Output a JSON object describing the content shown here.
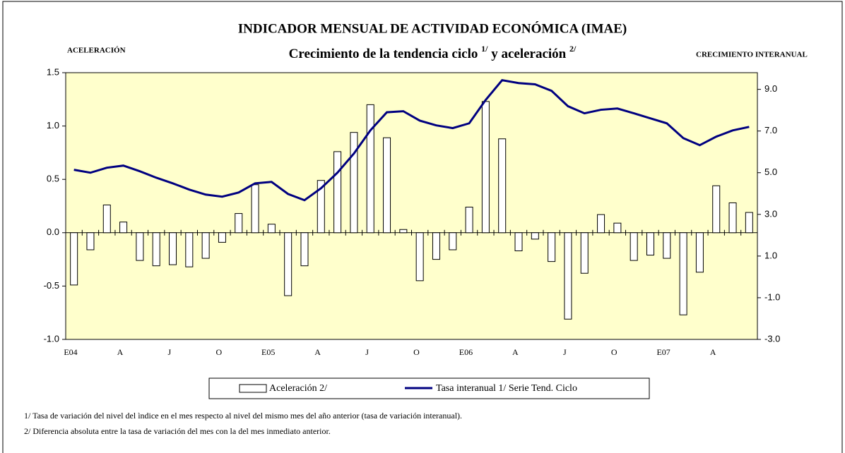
{
  "chart_data": {
    "type": "bar_line",
    "title": "INDICADOR MENSUAL DE ACTIVIDAD ECONÓMICA (IMAE)",
    "subtitle_parts": [
      "Crecimiento de la tendencia ciclo ",
      "1/",
      " y aceleración ",
      "2/"
    ],
    "y_label": "ACELERACIÓN",
    "y2_label": "CRECIMIENTO INTERANUAL",
    "categories": [
      "E04",
      null,
      null,
      "A",
      null,
      null,
      "J",
      null,
      null,
      "O",
      null,
      null,
      "E05",
      null,
      null,
      "A",
      null,
      null,
      "J",
      null,
      null,
      "O",
      null,
      null,
      "E06",
      null,
      null,
      "A",
      null,
      null,
      "J",
      null,
      null,
      "O",
      null,
      null,
      "E07",
      null,
      null,
      "A",
      null,
      null
    ],
    "series": [
      {
        "name": "Aceleración 2/",
        "type": "bar",
        "color": "#ffffff",
        "axis": "y",
        "values": [
          -0.49,
          -0.16,
          0.26,
          0.1,
          -0.26,
          -0.31,
          -0.3,
          -0.32,
          -0.24,
          -0.09,
          0.18,
          0.45,
          0.08,
          -0.59,
          -0.31,
          0.49,
          0.76,
          0.94,
          1.2,
          0.89,
          0.03,
          -0.45,
          -0.25,
          -0.16,
          0.24,
          1.23,
          0.88,
          -0.17,
          -0.06,
          -0.27,
          -0.81,
          -0.38,
          0.17,
          0.09,
          -0.26,
          -0.21,
          -0.24,
          -0.77,
          -0.37,
          0.44,
          0.28,
          0.19
        ]
      },
      {
        "name": "Tasa interanual 1/ Serie Tend. Ciclo",
        "type": "line",
        "color": "#000080",
        "axis": "y2",
        "values": [
          5.14,
          5.0,
          5.24,
          5.34,
          5.07,
          4.76,
          4.49,
          4.19,
          3.95,
          3.85,
          4.05,
          4.49,
          4.56,
          3.98,
          3.68,
          4.25,
          5.0,
          5.92,
          7.03,
          7.9,
          7.95,
          7.5,
          7.27,
          7.14,
          7.37,
          8.49,
          9.44,
          9.3,
          9.24,
          8.93,
          8.19,
          7.85,
          8.02,
          8.08,
          7.85,
          7.61,
          7.37,
          6.66,
          6.32,
          6.73,
          7.03,
          7.2
        ]
      }
    ],
    "ylim": [
      -1.0,
      1.5
    ],
    "yticks": [
      {
        "value": -1.0,
        "label": "-1.0"
      },
      -0.5,
      {
        "value": 0.0,
        "label": "0.0"
      },
      0.5,
      {
        "value": 1.0,
        "label": "1.0"
      },
      1.5
    ],
    "y2lim": [
      -3.0,
      9.8
    ],
    "y2ticks": [
      {
        "value": -3.0,
        "label": "-3.0"
      },
      {
        "value": -1.0,
        "label": "-1.0"
      },
      {
        "value": 1.0,
        "label": "1.0"
      },
      {
        "value": 3.0,
        "label": "3.0"
      },
      {
        "value": 5.0,
        "label": "5.0"
      },
      {
        "value": 7.0,
        "label": "7.0"
      },
      {
        "value": 9.0,
        "label": "9.0"
      }
    ],
    "plot_background": "#ffffcc",
    "footnotes": [
      "1/ Tasa de variación del nivel del ìndice en el mes respecto al nivel del mismo mes del año anterior (tasa de variación interanual).",
      "2/ Diferencia absoluta entre la tasa de variación del mes con la del mes inmediato anterior."
    ]
  }
}
